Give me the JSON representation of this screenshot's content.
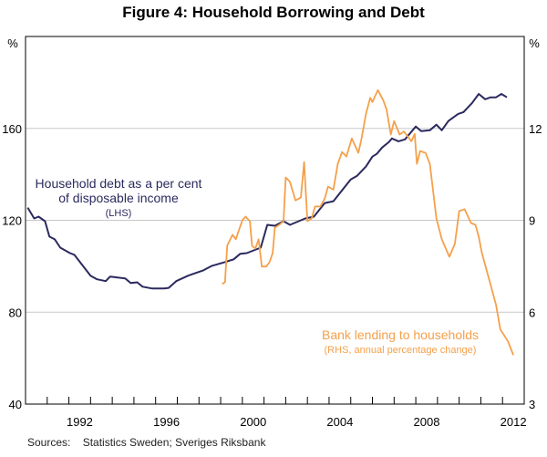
{
  "chart_data": {
    "type": "line",
    "title": "Figure 4: Household Borrowing and Debt",
    "left_axis": {
      "unit": "%",
      "ylim": [
        40,
        200
      ],
      "ticks": [
        40,
        80,
        120,
        160
      ]
    },
    "right_axis": {
      "unit": "%",
      "ylim": [
        3,
        15
      ],
      "ticks": [
        3,
        6,
        9,
        12
      ]
    },
    "xlim": [
      1990,
      2013
    ],
    "x_ticks": [
      1992,
      1996,
      2000,
      2004,
      2008,
      2012
    ],
    "grid": true,
    "series": [
      {
        "name": "Household debt as a per cent of disposable income",
        "label_lines": [
          "Household debt as a per cent",
          "of disposable income",
          "(LHS)"
        ],
        "axis": "left",
        "color": "#2b2a5e",
        "x": [
          1990.1,
          1990.4,
          1990.6,
          1990.9,
          1991.1,
          1991.35,
          1991.6,
          1992.05,
          1992.25,
          1993.0,
          1993.3,
          1993.7,
          1993.9,
          1994.6,
          1994.85,
          1995.15,
          1995.4,
          1995.85,
          1996.4,
          1996.6,
          1996.95,
          1997.5,
          1997.95,
          1998.2,
          1998.6,
          1999.2,
          1999.6,
          1999.9,
          2000.2,
          2000.85,
          2001.15,
          2001.5,
          2001.9,
          2002.2,
          2002.9,
          2003.3,
          2003.8,
          2004.2,
          2005.0,
          2005.3,
          2005.7,
          2006.0,
          2006.2,
          2006.45,
          2006.75,
          2006.9,
          2007.2,
          2007.5,
          2008.0,
          2008.25,
          2008.65,
          2008.95,
          2009.2,
          2009.5,
          2009.95,
          2010.2,
          2010.6,
          2010.9,
          2011.2,
          2011.45,
          2011.7,
          2011.95,
          2012.2
        ],
        "values": [
          125.5,
          120.8,
          121.6,
          119.6,
          112.9,
          111.7,
          108.1,
          105.7,
          105,
          95.9,
          94.3,
          93.5,
          95.5,
          94.7,
          92.7,
          93,
          91.1,
          90.3,
          90.3,
          90.6,
          93.5,
          95.9,
          97.4,
          98.2,
          100.2,
          101.8,
          103,
          105.4,
          105.7,
          108.1,
          118,
          117.6,
          119.6,
          118,
          120.8,
          121.6,
          127.5,
          128.3,
          137.8,
          139.4,
          143.4,
          147.7,
          148.9,
          151.7,
          154,
          155.6,
          154.4,
          155.2,
          160.8,
          158.8,
          159.2,
          161.6,
          159.2,
          163.2,
          166.3,
          167.1,
          171.1,
          175,
          172.7,
          173.5,
          173.5,
          175,
          173.5
        ]
      },
      {
        "name": "Bank lending to households",
        "label_lines": [
          "Bank lending to households",
          "(RHS, annual percentage change)"
        ],
        "axis": "right",
        "color": "#f5a04a",
        "x": [
          1999.07,
          1999.2,
          1999.3,
          1999.55,
          1999.7,
          1999.85,
          2000.0,
          2000.15,
          2000.35,
          2000.45,
          2000.6,
          2000.75,
          2000.9,
          2001.1,
          2001.25,
          2001.4,
          2001.5,
          2001.7,
          2001.9,
          2002.0,
          2002.2,
          2002.45,
          2002.7,
          2002.85,
          2003.0,
          2003.2,
          2003.35,
          2003.6,
          2003.8,
          2003.95,
          2004.2,
          2004.4,
          2004.6,
          2004.8,
          2005.05,
          2005.35,
          2005.5,
          2005.7,
          2005.9,
          2006.0,
          2006.25,
          2006.5,
          2006.65,
          2006.85,
          2007.0,
          2007.25,
          2007.45,
          2007.8,
          2007.95,
          2008.05,
          2008.2,
          2008.45,
          2008.65,
          2008.95,
          2009.2,
          2009.55,
          2009.8,
          2010.0,
          2010.25,
          2010.55,
          2010.75,
          2010.9,
          2011.05,
          2011.3,
          2011.7,
          2011.9,
          2012.25,
          2012.5
        ],
        "values": [
          6.92,
          6.98,
          8.17,
          8.53,
          8.38,
          8.7,
          9.0,
          9.12,
          8.97,
          8.17,
          8.08,
          8.38,
          7.49,
          7.49,
          7.63,
          7.93,
          8.76,
          8.85,
          8.97,
          10.4,
          10.25,
          9.65,
          9.74,
          10.9,
          8.97,
          9.06,
          9.45,
          9.45,
          9.71,
          10.1,
          10.0,
          10.84,
          11.23,
          11.08,
          11.67,
          11.2,
          11.67,
          12.47,
          13.0,
          12.86,
          13.25,
          12.92,
          12.62,
          11.8,
          12.24,
          11.8,
          11.9,
          11.58,
          11.82,
          10.84,
          11.26,
          11.2,
          10.84,
          9.06,
          8.38,
          7.81,
          8.23,
          9.3,
          9.36,
          8.91,
          8.85,
          8.47,
          7.93,
          7.28,
          6.24,
          5.44,
          5.05,
          4.6
        ]
      }
    ],
    "source": "Sources:    Statistics Sweden; Sveriges Riksbank"
  }
}
